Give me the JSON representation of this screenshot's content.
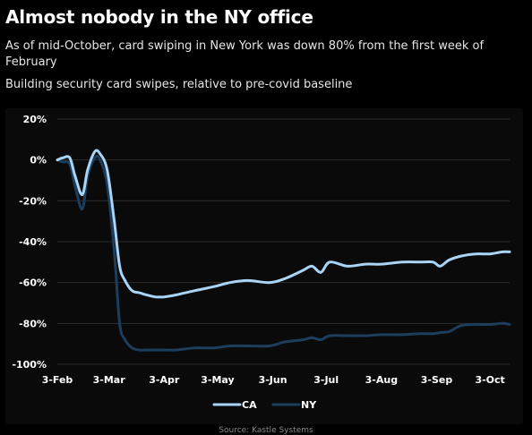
{
  "header": {
    "title": "Almost nobody in the NY office",
    "subtitle": "As of mid-October, card swiping in New York was down 80% from the first week of February",
    "description": "Building security card swipes, relative to pre-covid baseline"
  },
  "source": "Source: Kastle Systems",
  "colors": {
    "background": "#000000",
    "panel": "#0a0a0a",
    "grid": "#2c2c2c",
    "ca": "#a9d4f5",
    "ny": "#1c3d5c"
  },
  "chart_data": {
    "type": "line",
    "title": "",
    "xlabel": "",
    "ylabel": "",
    "ylim": [
      -100,
      20
    ],
    "yticks": [
      20,
      0,
      -20,
      -40,
      -60,
      -80,
      -100
    ],
    "ytick_labels": [
      "20%",
      "0%",
      "-20%",
      "-40%",
      "-60%",
      "-80%",
      "-100%"
    ],
    "xlim": [
      "2020-02-03",
      "2020-10-14"
    ],
    "xticks": [
      "2020-02-03",
      "2020-03-03",
      "2020-04-03",
      "2020-05-03",
      "2020-06-03",
      "2020-07-03",
      "2020-08-03",
      "2020-09-03",
      "2020-10-03"
    ],
    "xtick_labels": [
      "3-Feb",
      "3-Mar",
      "3-Apr",
      "3-May",
      "3-Jun",
      "3-Jul",
      "3-Aug",
      "3-Sep",
      "3-Oct"
    ],
    "grid": true,
    "legend_position": "bottom",
    "series": [
      {
        "name": "CA",
        "color": "#a9d4f5",
        "x": [
          "2020-02-03",
          "2020-02-06",
          "2020-02-10",
          "2020-02-13",
          "2020-02-17",
          "2020-02-20",
          "2020-02-24",
          "2020-02-27",
          "2020-03-02",
          "2020-03-06",
          "2020-03-09",
          "2020-03-12",
          "2020-03-16",
          "2020-03-20",
          "2020-03-24",
          "2020-03-29",
          "2020-04-03",
          "2020-04-10",
          "2020-04-20",
          "2020-05-01",
          "2020-05-10",
          "2020-05-20",
          "2020-06-01",
          "2020-06-10",
          "2020-06-20",
          "2020-06-25",
          "2020-06-30",
          "2020-07-05",
          "2020-07-15",
          "2020-07-25",
          "2020-08-03",
          "2020-08-15",
          "2020-08-25",
          "2020-09-01",
          "2020-09-05",
          "2020-09-10",
          "2020-09-17",
          "2020-09-25",
          "2020-10-03",
          "2020-10-10",
          "2020-10-14"
        ],
        "y": [
          0,
          1,
          1,
          -8,
          -17,
          -5,
          4,
          3,
          -5,
          -30,
          -52,
          -59,
          -64,
          -65,
          -66,
          -67,
          -67,
          -66,
          -64,
          -62,
          -60,
          -59,
          -60,
          -58,
          -54,
          -52,
          -55,
          -50,
          -52,
          -51,
          -51,
          -50,
          -50,
          -50,
          -52,
          -49,
          -47,
          -46,
          -46,
          -45,
          -45
        ]
      },
      {
        "name": "NY",
        "color": "#1c3d5c",
        "x": [
          "2020-02-03",
          "2020-02-06",
          "2020-02-10",
          "2020-02-13",
          "2020-02-17",
          "2020-02-20",
          "2020-02-24",
          "2020-02-27",
          "2020-03-02",
          "2020-03-06",
          "2020-03-09",
          "2020-03-12",
          "2020-03-16",
          "2020-03-20",
          "2020-03-24",
          "2020-03-29",
          "2020-04-03",
          "2020-04-10",
          "2020-04-20",
          "2020-05-01",
          "2020-05-10",
          "2020-05-20",
          "2020-06-01",
          "2020-06-10",
          "2020-06-20",
          "2020-06-25",
          "2020-06-30",
          "2020-07-05",
          "2020-07-15",
          "2020-07-25",
          "2020-08-03",
          "2020-08-15",
          "2020-08-25",
          "2020-09-01",
          "2020-09-05",
          "2020-09-10",
          "2020-09-17",
          "2020-09-25",
          "2020-10-03",
          "2020-10-10",
          "2020-10-14"
        ],
        "y": [
          0,
          -1,
          -2,
          -13,
          -24,
          -8,
          1,
          0,
          -12,
          -45,
          -80,
          -88,
          -92,
          -93,
          -93,
          -93,
          -93,
          -93,
          -92,
          -92,
          -91,
          -91,
          -91,
          -89,
          -88,
          -87,
          -88,
          -86,
          -86,
          -86,
          -85.5,
          -85.5,
          -85,
          -85,
          -84.5,
          -84,
          -81,
          -80.5,
          -80.5,
          -80,
          -80.5
        ]
      }
    ]
  }
}
